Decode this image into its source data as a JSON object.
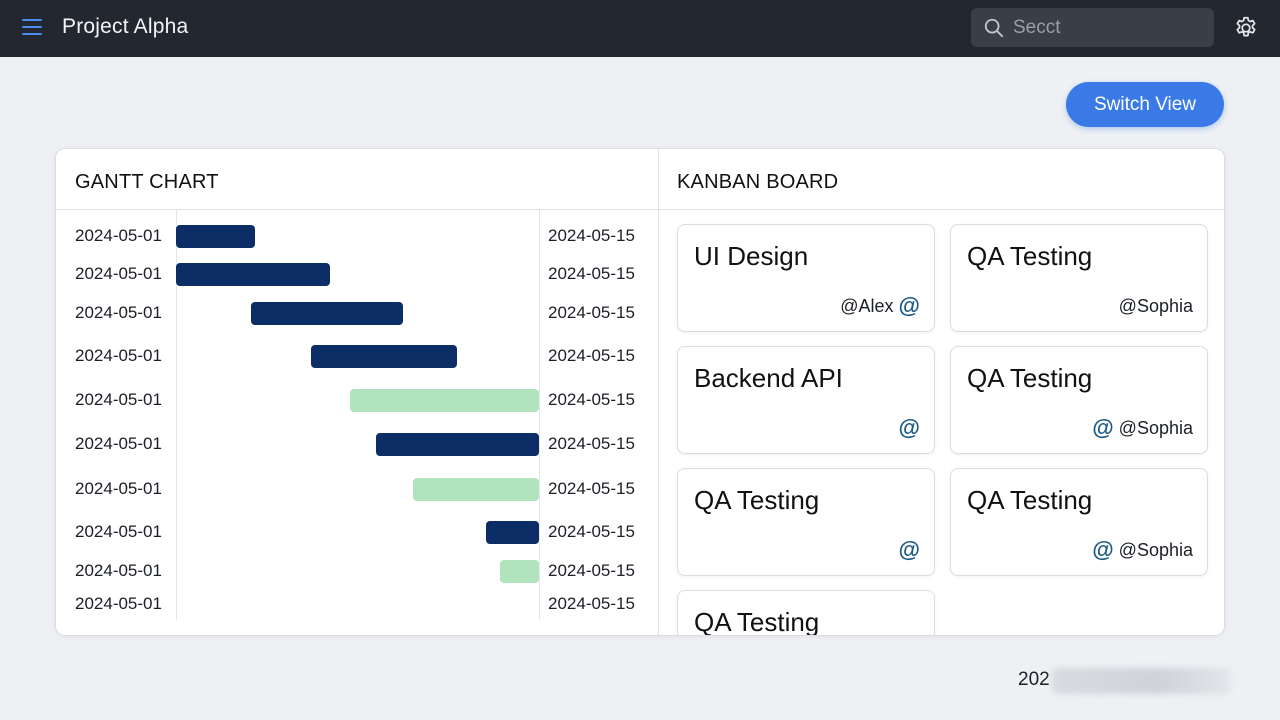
{
  "header": {
    "title": "Project Alpha",
    "search_placeholder": "Secct",
    "icons": {
      "menu": "hamburger-menu-icon",
      "search": "search-icon",
      "settings": "gear-icon"
    }
  },
  "switch_view_label": "Switch View",
  "gantt": {
    "title": "GANTT CHART",
    "tasks": [
      {
        "start": "2024-05-01",
        "end": "2024-05-15",
        "color": "dark"
      },
      {
        "start": "2024-05-01",
        "end": "2024-05-15",
        "color": "dark"
      },
      {
        "start": "2024-05-01",
        "end": "2024-05-15",
        "color": "dark"
      },
      {
        "start": "2024-05-01",
        "end": "2024-05-15",
        "color": "dark"
      },
      {
        "start": "2024-05-01",
        "end": "2024-05-15",
        "color": "light"
      },
      {
        "start": "2024-05-01",
        "end": "2024-05-15",
        "color": "dark"
      },
      {
        "start": "2024-05-01",
        "end": "2024-05-15",
        "color": "light"
      },
      {
        "start": "2024-05-01",
        "end": "2024-05-15",
        "color": "dark"
      },
      {
        "start": "2024-05-01",
        "end": "2024-05-15",
        "color": "light"
      },
      {
        "start": "2024-05-01",
        "end": "2024-05-15",
        "color": "none"
      }
    ],
    "colors": {
      "dark": "#0d2d67",
      "light": "#b1e4bd"
    }
  },
  "kanban": {
    "title": "KANBAN BOARD",
    "cards": [
      {
        "title": "UI Design",
        "assignee": "@Alex",
        "icon_position": "after"
      },
      {
        "title": "QA Testing",
        "assignee": "@Sophia",
        "icon_position": "none"
      },
      {
        "title": "Backend API",
        "assignee": "",
        "icon_position": "only"
      },
      {
        "title": "QA Testing",
        "assignee": "@Sophia",
        "icon_position": "before"
      },
      {
        "title": "QA Testing",
        "assignee": "",
        "icon_position": "only"
      },
      {
        "title": "QA Testing",
        "assignee": "@Sophia",
        "icon_position": "before"
      },
      {
        "title": "QA Testing",
        "assignee": "",
        "icon_position": "none"
      }
    ],
    "at_symbol": "@"
  },
  "footer": {
    "text": "202"
  },
  "accent_color": "#3a7ae6"
}
